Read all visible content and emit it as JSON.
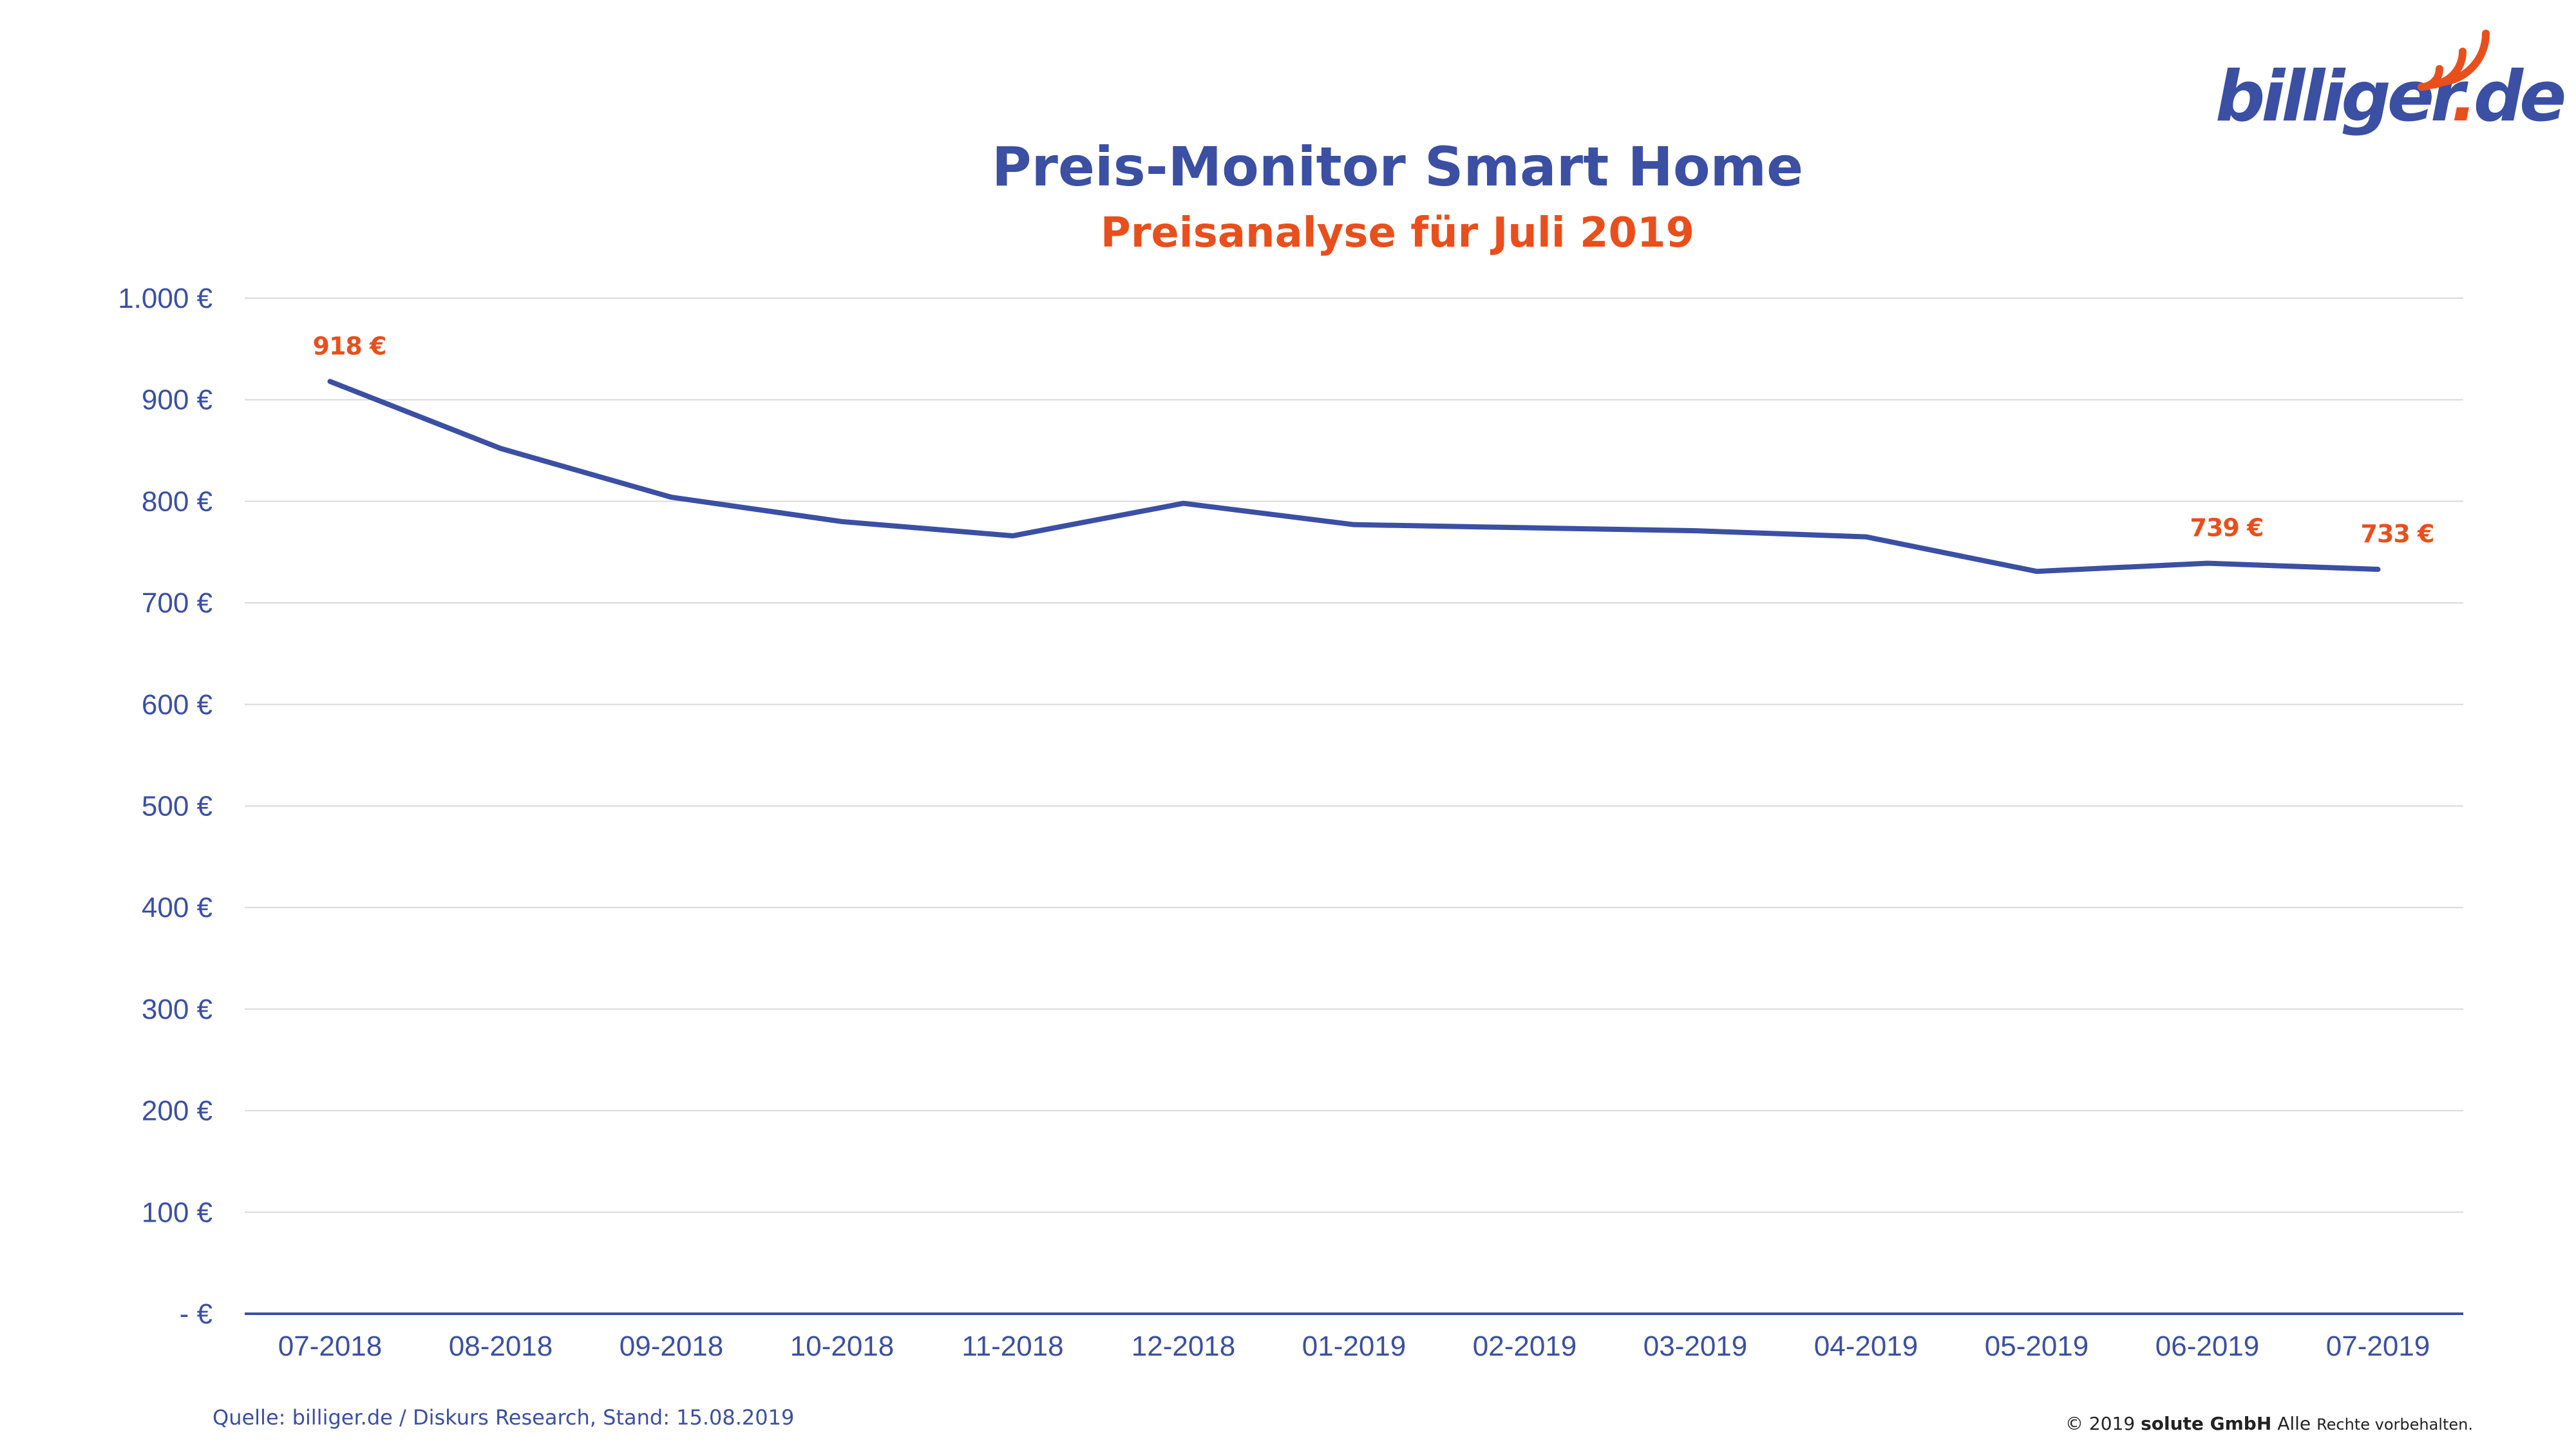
{
  "logo": {
    "brand": "billiger",
    "dot": ".",
    "tld": "de"
  },
  "title": "Preis-Monitor Smart Home",
  "subtitle": "Preisanalyse für Juli 2019",
  "source": "Quelle: billiger.de / Diskurs Research, Stand: 15.08.2019",
  "copyright": {
    "prefix": "© 2019",
    "company": "solute GmbH",
    "alle": "Alle",
    "rest": "Rechte vorbehalten."
  },
  "colors": {
    "line": "#3b4fa3",
    "accent": "#e94f1c",
    "grid": "#d9d9d9",
    "text": "#3b4fa3"
  },
  "chart_data": {
    "type": "line",
    "title": "Preis-Monitor Smart Home",
    "subtitle": "Preisanalyse für Juli 2019",
    "categories": [
      "07-2018",
      "08-2018",
      "09-2018",
      "10-2018",
      "11-2018",
      "12-2018",
      "01-2019",
      "02-2019",
      "03-2019",
      "04-2019",
      "05-2019",
      "06-2019",
      "07-2019"
    ],
    "series": [
      {
        "values": [
          918,
          852,
          804,
          780,
          766,
          798,
          777,
          774,
          771,
          765,
          731,
          739,
          733
        ]
      }
    ],
    "ylim": [
      0,
      1000
    ],
    "yticks": [
      0,
      100,
      200,
      300,
      400,
      500,
      600,
      700,
      800,
      900,
      1000
    ],
    "ytick_labels": [
      "-   €",
      "100 €",
      "200 €",
      "300 €",
      "400 €",
      "500 €",
      "600 €",
      "700 €",
      "800 €",
      "900 €",
      "1.000 €"
    ],
    "data_labels": [
      {
        "index": 0,
        "text": "918 €"
      },
      {
        "index": 11,
        "text": "739 €"
      },
      {
        "index": 12,
        "text": "733 €"
      }
    ],
    "grid": true,
    "legend": "none"
  }
}
